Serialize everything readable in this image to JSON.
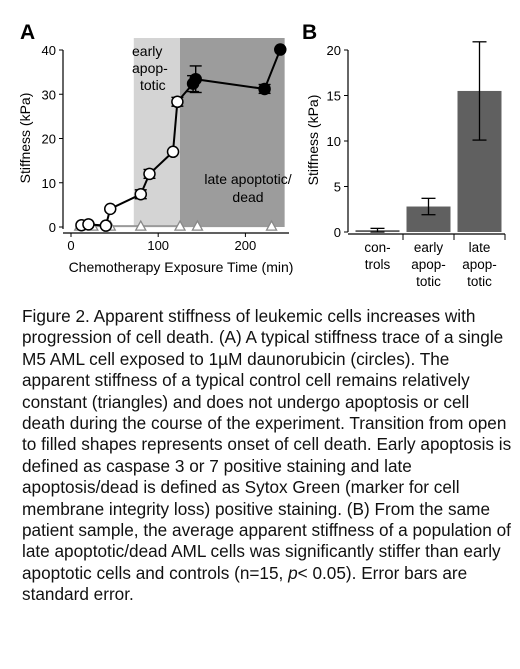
{
  "panel_labels": {
    "a": "A",
    "b": "B"
  },
  "shading": {
    "early_label_lines": [
      "early",
      "apop-",
      "totic"
    ],
    "late_label_lines": [
      "late apoptotic/",
      "dead"
    ],
    "early_range_min": [
      72,
      125
    ],
    "late_range_min": [
      125,
      245
    ],
    "early_color": "#d4d4d4",
    "late_color": "#9c9c9c"
  },
  "chart_data": [
    {
      "type": "line",
      "panel": "A",
      "xlabel": "Chemotherapy Exposure Time (min)",
      "ylabel": "Stiffness (kPa)",
      "xlim": [
        0,
        250
      ],
      "ylim": [
        0,
        40
      ],
      "xticks": [
        0,
        100,
        200
      ],
      "yticks": [
        0,
        10,
        20,
        30,
        40
      ],
      "grid": false,
      "series": [
        {
          "marker": "circle",
          "x": [
            12,
            20,
            40,
            45,
            80,
            90,
            117,
            122,
            140,
            143,
            222,
            240
          ],
          "y": [
            0.4,
            0.6,
            0.3,
            4.1,
            7.4,
            12.0,
            17.0,
            28.3,
            32.4,
            33.4,
            31.2,
            40.1
          ],
          "err": [
            0,
            0,
            0,
            0,
            1.0,
            1.0,
            0,
            1.0,
            1.8,
            3.0,
            1.0,
            0
          ],
          "filled": [
            false,
            false,
            false,
            false,
            false,
            false,
            false,
            false,
            true,
            true,
            true,
            true
          ]
        },
        {
          "marker": "triangle",
          "x": [
            10,
            25,
            45,
            80,
            125,
            145,
            230
          ],
          "y": [
            0.2,
            0.2,
            0.2,
            0.2,
            0.2,
            0.2,
            0.2
          ]
        }
      ]
    },
    {
      "type": "bar",
      "panel": "B",
      "categories": [
        "con-\ntrols",
        "early\napop-\ntotic",
        "late\napop-\ntotic"
      ],
      "values": [
        0.2,
        2.8,
        15.5
      ],
      "errors": [
        0.2,
        0.9,
        5.4
      ],
      "ylabel": "Stiffness (kPa)",
      "ylim": [
        0,
        20
      ],
      "yticks": [
        0,
        5,
        10,
        15,
        20
      ],
      "bar_color": "#606060"
    }
  ],
  "caption": {
    "part1": "Figure 2. Apparent stiffness of leukemic cells increases with progression of cell death. (A) A typical stiffness trace of a single M5 AML cell exposed to 1µM daunorubicin (circles). The apparent stiffness of a typical control cell remains relatively constant (triangles) and does not undergo apoptosis or cell death during the course of the experiment. Transition from open to filled shapes represents onset of cell death. Early apoptosis is defined as caspase 3 or 7 positive staining and late apoptosis/dead is defined as Sytox Green (marker for cell membrane integrity loss) positive staining. (B) From the same patient sample, the average apparent stiffness of a population of late apoptotic/dead AML cells was significantly stiffer than early apoptotic cells and controls (n=15, ",
    "p_symbol": "p",
    "part2": "< 0.05). Error bars are standard error."
  }
}
